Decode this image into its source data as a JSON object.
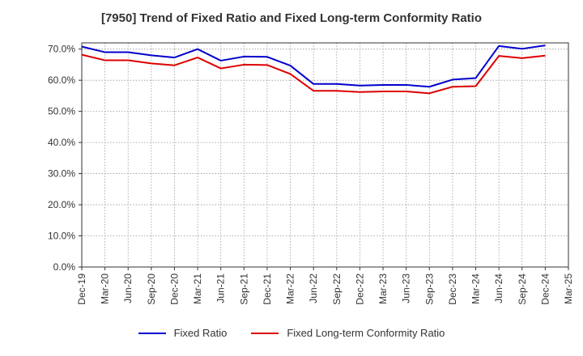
{
  "chart_data": {
    "type": "line",
    "title": "[7950]  Trend of Fixed Ratio and Fixed Long-term Conformity Ratio",
    "xlabel": "",
    "ylabel": "",
    "ylim": [
      0,
      72
    ],
    "y_ticks": [
      0,
      10,
      20,
      30,
      40,
      50,
      60,
      70
    ],
    "y_tick_labels": [
      "0.0%",
      "10.0%",
      "20.0%",
      "30.0%",
      "40.0%",
      "50.0%",
      "60.0%",
      "70.0%"
    ],
    "categories": [
      "Dec-19",
      "Mar-20",
      "Jun-20",
      "Sep-20",
      "Dec-20",
      "Mar-21",
      "Jun-21",
      "Sep-21",
      "Dec-21",
      "Mar-22",
      "Jun-22",
      "Sep-22",
      "Dec-22",
      "Mar-23",
      "Jun-23",
      "Sep-23",
      "Dec-23",
      "Mar-24",
      "Jun-24",
      "Sep-24",
      "Dec-24",
      "Mar-25"
    ],
    "grid": true,
    "legend_position": "bottom",
    "series": [
      {
        "name": "Fixed Ratio",
        "color": "#0000cc",
        "values": [
          70.8,
          69.0,
          69.0,
          68.0,
          67.3,
          70.0,
          66.3,
          67.6,
          67.5,
          64.7,
          58.8,
          58.8,
          58.3,
          58.5,
          58.5,
          57.9,
          60.2,
          60.7,
          71.0,
          70.1,
          71.2,
          null
        ]
      },
      {
        "name": "Fixed Long-term Conformity Ratio",
        "color": "#dd0000",
        "values": [
          68.2,
          66.4,
          66.4,
          65.4,
          64.8,
          67.3,
          63.8,
          65.0,
          64.9,
          62.0,
          56.6,
          56.6,
          56.2,
          56.4,
          56.4,
          55.8,
          57.9,
          58.1,
          67.8,
          67.1,
          67.9,
          null
        ]
      }
    ]
  }
}
